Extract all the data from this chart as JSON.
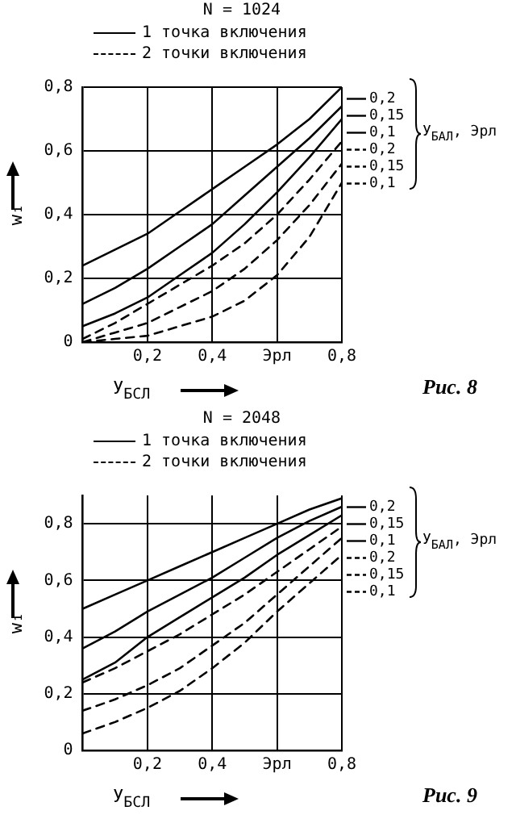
{
  "chart_data": [
    {
      "type": "line",
      "title": "N = 1024",
      "xlabel": "У$_{БСЛ}$",
      "ylabel": "w₁",
      "x": [
        0,
        0.1,
        0.2,
        0.3,
        0.4,
        0.5,
        0.6,
        0.7,
        0.8
      ],
      "xlim": [
        0,
        0.8
      ],
      "xticks": [
        {
          "value": 0.2,
          "label": "0,2"
        },
        {
          "value": 0.4,
          "label": "0,4"
        },
        {
          "value": 0.6,
          "label": "Эрл"
        },
        {
          "value": 0.8,
          "label": "0,8"
        }
      ],
      "ylim": [
        0,
        0.8
      ],
      "yticks": [
        0,
        {
          "value": 0.2,
          "label": "0,2"
        },
        {
          "value": 0.4,
          "label": "0,4"
        },
        {
          "value": 0.6,
          "label": "0,6"
        },
        {
          "value": 0.8,
          "label": "0,8"
        }
      ],
      "grid": true,
      "marker": "none",
      "legend": "top right",
      "annotations": [
        "1 точка включения",
        "2 точки включения",
        "У$_{БАЛ}$, Эрл",
        "Рис. 8"
      ],
      "series": [
        {
          "name": "0,2",
          "color": "#000000",
          "line_style": "solid",
          "values": [
            0.24,
            0.29,
            0.34,
            0.41,
            0.48,
            0.55,
            0.62,
            0.7,
            0.8
          ]
        },
        {
          "name": "0,15",
          "color": "#000000",
          "line_style": "solid",
          "values": [
            0.12,
            0.17,
            0.23,
            0.3,
            0.37,
            0.46,
            0.55,
            0.64,
            0.74
          ]
        },
        {
          "name": "0,1",
          "color": "#000000",
          "line_style": "solid",
          "values": [
            0.05,
            0.09,
            0.14,
            0.21,
            0.28,
            0.37,
            0.47,
            0.58,
            0.7
          ]
        },
        {
          "name": "0,2",
          "color": "#000000",
          "line_style": "dashed",
          "values": [
            0.01,
            0.06,
            0.12,
            0.18,
            0.24,
            0.31,
            0.4,
            0.51,
            0.63
          ]
        },
        {
          "name": "0,15",
          "color": "#000000",
          "line_style": "dashed",
          "values": [
            0,
            0.03,
            0.06,
            0.11,
            0.16,
            0.23,
            0.32,
            0.43,
            0.56
          ]
        },
        {
          "name": "0,1",
          "color": "#000000",
          "line_style": "dashed",
          "values": [
            0,
            0.01,
            0.02,
            0.05,
            0.08,
            0.13,
            0.21,
            0.33,
            0.5
          ]
        }
      ]
    },
    {
      "type": "line",
      "title": "N = 2048",
      "xlabel": "У$_{БСЛ}$",
      "ylabel": "w₁",
      "x": [
        0,
        0.1,
        0.2,
        0.3,
        0.4,
        0.5,
        0.6,
        0.7,
        0.8
      ],
      "xlim": [
        0,
        0.8
      ],
      "xticks": [
        {
          "value": 0.2,
          "label": "0,2"
        },
        {
          "value": 0.4,
          "label": "0,4"
        },
        {
          "value": 0.6,
          "label": "Эрл"
        },
        {
          "value": 0.8,
          "label": "0,8"
        }
      ],
      "ylim": [
        0,
        0.9
      ],
      "yticks": [
        0,
        {
          "value": 0.2,
          "label": "0,2"
        },
        {
          "value": 0.4,
          "label": "0,4"
        },
        {
          "value": 0.6,
          "label": "0,6"
        },
        {
          "value": 0.8,
          "label": "0,8"
        }
      ],
      "grid": true,
      "marker": "none",
      "legend": "top right",
      "annotations": [
        "1 точка включения",
        "2 точки включения",
        "У$_{БАЛ}$, Эрл",
        "Рис. 9"
      ],
      "series": [
        {
          "name": "0,2",
          "color": "#000000",
          "line_style": "solid",
          "values": [
            0.5,
            0.55,
            0.6,
            0.65,
            0.7,
            0.75,
            0.8,
            0.85,
            0.89
          ]
        },
        {
          "name": "0,15",
          "color": "#000000",
          "line_style": "solid",
          "values": [
            0.36,
            0.42,
            0.49,
            0.55,
            0.61,
            0.68,
            0.75,
            0.81,
            0.86
          ]
        },
        {
          "name": "0,1",
          "color": "#000000",
          "line_style": "solid",
          "values": [
            0.25,
            0.31,
            0.4,
            0.47,
            0.54,
            0.61,
            0.69,
            0.76,
            0.83
          ]
        },
        {
          "name": "0,2",
          "color": "#000000",
          "line_style": "dashed",
          "values": [
            0.24,
            0.29,
            0.35,
            0.41,
            0.48,
            0.55,
            0.63,
            0.71,
            0.79
          ]
        },
        {
          "name": "0,15",
          "color": "#000000",
          "line_style": "dashed",
          "values": [
            0.14,
            0.18,
            0.23,
            0.29,
            0.37,
            0.45,
            0.55,
            0.65,
            0.75
          ]
        },
        {
          "name": "0,1",
          "color": "#000000",
          "line_style": "dashed",
          "values": [
            0.06,
            0.1,
            0.15,
            0.21,
            0.29,
            0.38,
            0.49,
            0.59,
            0.69
          ]
        }
      ]
    }
  ]
}
